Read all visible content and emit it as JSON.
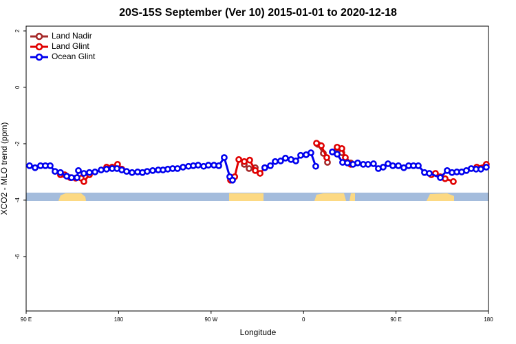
{
  "chart_data": {
    "type": "line",
    "title": "20S-15S September (Ver 10)   2015-01-01 to 2020-12-18",
    "x_label": "Longitude",
    "y_label": "XCO2 - MLO trend (ppm)",
    "xlim": [
      90,
      540
    ],
    "ylim": [
      -7.93,
      2.17
    ],
    "xticks": [
      {
        "value": 90,
        "label": "90 E"
      },
      180,
      {
        "value": 270,
        "label": "90 W"
      },
      {
        "value": 360,
        "label": "0"
      },
      {
        "value": 450,
        "label": "90 E"
      },
      {
        "value": 540,
        "label": "180"
      }
    ],
    "yticks": [
      2,
      0,
      -2,
      -4,
      -6
    ],
    "legend": "top-left",
    "series": [
      {
        "name": "Land Nadir",
        "color": "#a52a2a",
        "x": [
          302.3,
          307,
          313,
          340,
          373.9,
          379.3,
          383.3,
          388,
          392.7,
          397.3,
          406
        ],
        "values": [
          -2.73,
          -2.88,
          -2.85,
          null,
          -2.02,
          -2.34,
          -2.66,
          null,
          -2.15,
          -2.32,
          -2.68
        ]
      },
      {
        "name": "Land Glint",
        "color": "#e00000",
        "x": [
          123.4,
          127.5,
          132.9,
          138.2,
          143.6,
          146.2,
          151.6,
          160,
          168.3,
          173.7,
          179,
          183.1,
          230,
          288.9,
          293,
          297,
          302.3,
          307.6,
          313,
          317.7,
          322.3,
          350,
          372.6,
          377.3,
          382.6,
          388,
          392.7,
          397.3,
          400.7,
          406,
          450,
          484.4,
          488.4,
          493.1,
          497.8,
          505.8,
          515,
          528.6,
          537.9
        ],
        "values": [
          -3.1,
          -3.1,
          -3.2,
          -3.22,
          -3.22,
          -3.34,
          -3.1,
          null,
          -2.83,
          -2.83,
          -2.73,
          -2.9,
          null,
          -3.29,
          -3.17,
          -2.56,
          -2.63,
          -2.58,
          -2.95,
          -3.05,
          -2.85,
          null,
          -1.98,
          -2.07,
          -2.49,
          null,
          -2.12,
          -2.17,
          -2.49,
          -2.73,
          null,
          -3.1,
          -3.05,
          -3.17,
          -3.24,
          -3.34,
          null,
          -2.83,
          -2.73
        ]
      },
      {
        "name": "Ocean Glint",
        "color": "#0000ee",
        "x": [
          93.3,
          98.7,
          104,
          108.7,
          113.4,
          118.1,
          123.4,
          129.5,
          134.2,
          139.5,
          140.9,
          146.2,
          151.6,
          157,
          163,
          168.3,
          173.7,
          178.4,
          183.1,
          187.8,
          193.1,
          198.5,
          203.2,
          207.8,
          213.2,
          218.6,
          223.2,
          227.9,
          232.6,
          237.3,
          242.7,
          248,
          252.7,
          257.4,
          262.8,
          267.4,
          272.8,
          277.5,
          282.8,
          288.2,
          290.9,
          305,
          322.3,
          327.7,
          332.4,
          337.7,
          342.4,
          347.8,
          352.5,
          357.2,
          362.5,
          367.2,
          371.9,
          380,
          388,
          392.7,
          398,
          402.7,
          408.1,
          412.7,
          418.1,
          422.8,
          428.1,
          432.8,
          437.5,
          442.2,
          446.9,
          452.3,
          457.6,
          462.3,
          467,
          471.7,
          477.7,
          482.4,
          493.1,
          499.8,
          504.5,
          509.2,
          513.9,
          518.5,
          523.2,
          527.9,
          532.6,
          537.9
        ],
        "values": [
          -2.78,
          -2.85,
          -2.78,
          -2.78,
          -2.78,
          -2.98,
          -3.02,
          -3.15,
          -3.2,
          -3.2,
          -2.95,
          -3.05,
          -3.02,
          -3.0,
          -2.93,
          -2.9,
          -2.88,
          -2.88,
          -2.93,
          -2.98,
          -3.02,
          -3.0,
          -3.02,
          -2.98,
          -2.95,
          -2.93,
          -2.93,
          -2.9,
          -2.88,
          -2.88,
          -2.83,
          -2.8,
          -2.78,
          -2.76,
          -2.8,
          -2.76,
          -2.76,
          -2.78,
          -2.49,
          -3.17,
          -3.29,
          null,
          -2.85,
          -2.78,
          -2.63,
          -2.61,
          -2.51,
          -2.56,
          -2.61,
          -2.41,
          -2.39,
          -2.32,
          -2.8,
          null,
          -2.29,
          -2.37,
          -2.66,
          -2.68,
          -2.73,
          -2.68,
          -2.73,
          -2.73,
          -2.71,
          -2.88,
          -2.83,
          -2.71,
          -2.78,
          -2.78,
          -2.85,
          -2.78,
          -2.78,
          -2.78,
          -3.02,
          -3.05,
          -3.2,
          -2.95,
          -3.02,
          -3.0,
          -3.0,
          -2.95,
          -2.88,
          -2.9,
          -2.9,
          -2.83
        ]
      }
    ]
  }
}
